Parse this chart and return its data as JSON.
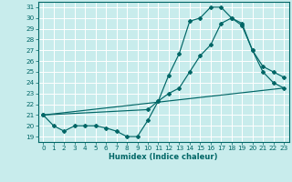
{
  "xlabel": "Humidex (Indice chaleur)",
  "background_color": "#c8ecec",
  "grid_color": "#ffffff",
  "line_color": "#006666",
  "xlim": [
    -0.5,
    23.5
  ],
  "ylim": [
    18.5,
    31.5
  ],
  "xticks": [
    0,
    1,
    2,
    3,
    4,
    5,
    6,
    7,
    8,
    9,
    10,
    11,
    12,
    13,
    14,
    15,
    16,
    17,
    18,
    19,
    20,
    21,
    22,
    23
  ],
  "yticks": [
    19,
    20,
    21,
    22,
    23,
    24,
    25,
    26,
    27,
    28,
    29,
    30,
    31
  ],
  "line1_x": [
    0,
    1,
    2,
    3,
    4,
    5,
    6,
    7,
    8,
    9,
    10,
    11,
    12,
    13,
    14,
    15,
    16,
    17,
    18,
    19,
    20,
    21,
    22,
    23
  ],
  "line1_y": [
    21.0,
    20.0,
    19.5,
    20.0,
    20.0,
    20.0,
    19.8,
    19.5,
    19.0,
    19.0,
    20.5,
    22.3,
    24.7,
    26.7,
    29.7,
    30.0,
    31.0,
    31.0,
    30.0,
    29.5,
    27.0,
    25.0,
    24.0,
    23.5
  ],
  "line2_x": [
    0,
    23
  ],
  "line2_y": [
    21.0,
    23.5
  ],
  "line3_x": [
    0,
    10,
    11,
    12,
    13,
    14,
    15,
    16,
    17,
    18,
    19,
    20,
    21,
    22,
    23
  ],
  "line3_y": [
    21.0,
    21.5,
    22.3,
    23.0,
    23.5,
    25.0,
    26.5,
    27.5,
    29.5,
    30.0,
    29.3,
    27.0,
    25.5,
    25.0,
    24.5
  ]
}
